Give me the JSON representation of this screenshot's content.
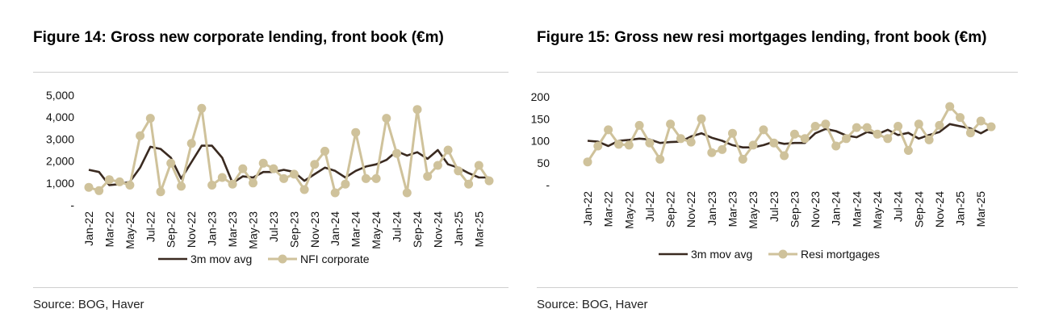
{
  "colors": {
    "avg": "#3a2a20",
    "series": "#cfc29b",
    "axis": "#555555",
    "rule": "#cfcfcf"
  },
  "figures": [
    {
      "title": "Figure 14: Gross new corporate lending, front book (€m)",
      "source": "Source: BOG, Haver",
      "chart_data": {
        "type": "line",
        "title": "Figure 14: Gross new corporate lending, front book (€m)",
        "xlabel": "",
        "ylabel": "",
        "ylim": [
          0,
          5000
        ],
        "y_ticks": [
          0,
          1000,
          2000,
          3000,
          4000,
          5000
        ],
        "y_tick_labels": [
          "-",
          "1,000",
          "2,000",
          "3,000",
          "4,000",
          "5,000"
        ],
        "grid": true,
        "legend_position": "bottom",
        "x_tick_labels": [
          "Jan-22",
          "Mar-22",
          "May-22",
          "Jul-22",
          "Sep-22",
          "Nov-22",
          "Jan-23",
          "Mar-23",
          "May-23",
          "Jul-23",
          "Sep-23",
          "Nov-23",
          "Jan-24",
          "Mar-24",
          "May-24",
          "Jul-24",
          "Sep-24",
          "Nov-24",
          "Jan-25",
          "Mar-25"
        ],
        "x": [
          "Jan-22",
          "Feb-22",
          "Mar-22",
          "Apr-22",
          "May-22",
          "Jun-22",
          "Jul-22",
          "Aug-22",
          "Sep-22",
          "Oct-22",
          "Nov-22",
          "Dec-22",
          "Jan-23",
          "Feb-23",
          "Mar-23",
          "Apr-23",
          "May-23",
          "Jun-23",
          "Jul-23",
          "Aug-23",
          "Sep-23",
          "Oct-23",
          "Nov-23",
          "Dec-23",
          "Jan-24",
          "Feb-24",
          "Mar-24",
          "Apr-24",
          "May-24",
          "Jun-24",
          "Jul-24",
          "Aug-24",
          "Sep-24",
          "Oct-24",
          "Nov-24",
          "Dec-24",
          "Jan-25",
          "Feb-25",
          "Mar-25",
          "Apr-25"
        ],
        "series": [
          {
            "name": "3m mov avg",
            "style": "line",
            "values": [
              1600,
              1500,
              900,
              950,
              1050,
              1700,
              2650,
              2550,
              2150,
              1200,
              1950,
              2700,
              2700,
              2150,
              1000,
              1300,
              1250,
              1500,
              1500,
              1600,
              1500,
              1100,
              1400,
              1700,
              1550,
              1250,
              1550,
              1750,
              1850,
              2050,
              2450,
              2250,
              2400,
              2100,
              2500,
              1850,
              1700,
              1450,
              1250,
              1250
            ]
          },
          {
            "name": "NFI corporate",
            "style": "line-markers",
            "values": [
              800,
              650,
              1150,
              1050,
              900,
              3150,
              3950,
              600,
              1900,
              850,
              2800,
              4400,
              900,
              1250,
              950,
              1650,
              1000,
              1900,
              1650,
              1200,
              1400,
              700,
              1850,
              2450,
              550,
              950,
              3300,
              1200,
              1200,
              3950,
              2350,
              550,
              4350,
              1300,
              1800,
              2500,
              1550,
              950,
              1800,
              1100
            ]
          }
        ]
      }
    },
    {
      "title": "Figure 15: Gross new resi mortgages lending, front book (€m)",
      "source": "Source: BOG, Haver",
      "chart_data": {
        "type": "line",
        "title": "Figure 15: Gross new resi mortgages lending, front book (€m)",
        "xlabel": "",
        "ylabel": "",
        "ylim": [
          0,
          200
        ],
        "y_ticks": [
          0,
          50,
          100,
          150,
          200
        ],
        "y_tick_labels": [
          "-",
          "50",
          "100",
          "150",
          "200"
        ],
        "grid": true,
        "legend_position": "bottom",
        "x_tick_labels": [
          "Jan-22",
          "Mar-22",
          "May-22",
          "Jul-22",
          "Sep-22",
          "Nov-22",
          "Jan-23",
          "Mar-23",
          "May-23",
          "Jul-23",
          "Sep-23",
          "Nov-23",
          "Jan-24",
          "Mar-24",
          "May-24",
          "Jul-24",
          "Sep-24",
          "Nov-24",
          "Jan-25",
          "Mar-25"
        ],
        "x": [
          "Jan-22",
          "Feb-22",
          "Mar-22",
          "Apr-22",
          "May-22",
          "Jun-22",
          "Jul-22",
          "Aug-22",
          "Sep-22",
          "Oct-22",
          "Nov-22",
          "Dec-22",
          "Jan-23",
          "Feb-23",
          "Mar-23",
          "Apr-23",
          "May-23",
          "Jun-23",
          "Jul-23",
          "Aug-23",
          "Sep-23",
          "Oct-23",
          "Nov-23",
          "Dec-23",
          "Jan-24",
          "Feb-24",
          "Mar-24",
          "Apr-24",
          "May-24",
          "Jun-24",
          "Jul-24",
          "Aug-24",
          "Sep-24",
          "Oct-24",
          "Nov-24",
          "Dec-24",
          "Jan-25",
          "Feb-25",
          "Mar-25",
          "Apr-25"
        ],
        "series": [
          {
            "name": "3m mov avg",
            "style": "line",
            "values": [
              100,
              98,
              88,
              100,
              102,
              105,
              103,
              95,
              97,
              98,
              110,
              117,
              107,
              100,
              90,
              85,
              85,
              90,
              98,
              93,
              95,
              95,
              117,
              127,
              122,
              112,
              108,
              120,
              115,
              125,
              113,
              118,
              105,
              113,
              120,
              138,
              133,
              128,
              117,
              130
            ]
          },
          {
            "name": "Resi mortgages",
            "style": "line-markers",
            "values": [
              52,
              88,
              125,
              92,
              90,
              135,
              95,
              58,
              138,
              105,
              97,
              150,
              73,
              80,
              117,
              58,
              90,
              125,
              95,
              66,
              115,
              105,
              133,
              138,
              88,
              105,
              130,
              130,
              115,
              105,
              133,
              78,
              138,
              102,
              135,
              178,
              153,
              118,
              145,
              132
            ]
          }
        ]
      }
    }
  ]
}
